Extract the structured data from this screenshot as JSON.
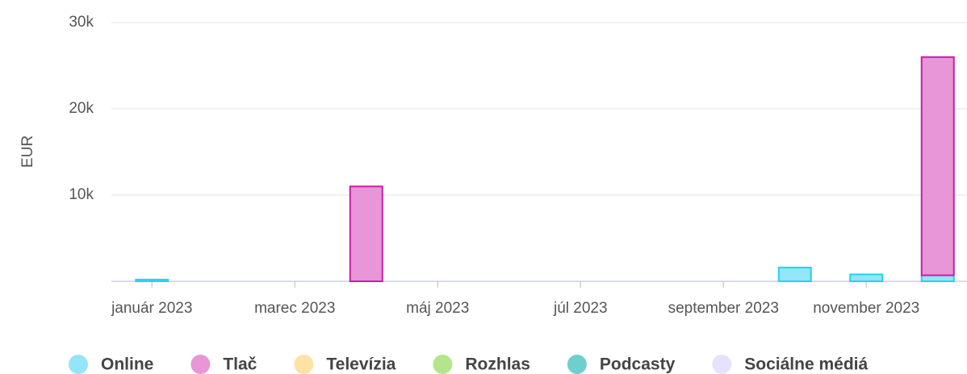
{
  "chart_data": {
    "type": "stacked-bar",
    "y_label": "EUR",
    "categories": [
      "január 2023",
      null,
      "marec 2023",
      null,
      "máj 2023",
      null,
      "júl 2023",
      null,
      "september 2023",
      null,
      "november 2023",
      null
    ],
    "series": [
      {
        "name": "Online",
        "color": "#93e5f7",
        "stroke": "#22d3ee",
        "values": [
          200,
          0,
          0,
          0,
          0,
          0,
          0,
          0,
          0,
          1600,
          800,
          700
        ]
      },
      {
        "name": "Tlač",
        "color": "#e896d8",
        "stroke": "#c81ea5",
        "values": [
          0,
          0,
          0,
          11000,
          0,
          0,
          0,
          0,
          0,
          0,
          0,
          25300
        ]
      },
      {
        "name": "Televízia",
        "color": "#fde2a6",
        "values": [
          0,
          0,
          0,
          0,
          0,
          0,
          0,
          0,
          0,
          0,
          0,
          0
        ]
      },
      {
        "name": "Rozhlas",
        "color": "#b3e68c",
        "values": [
          0,
          0,
          0,
          0,
          0,
          0,
          0,
          0,
          0,
          0,
          0,
          0
        ]
      },
      {
        "name": "Podcasty",
        "color": "#6ecfcf",
        "values": [
          0,
          0,
          0,
          0,
          0,
          0,
          0,
          0,
          0,
          0,
          0,
          0
        ]
      },
      {
        "name": "Sociálne médiá",
        "color": "#e5e3fb",
        "values": [
          0,
          0,
          0,
          0,
          0,
          0,
          0,
          0,
          0,
          0,
          0,
          0
        ]
      }
    ],
    "ylim": [
      0,
      30000
    ],
    "yticks": [
      {
        "value": 10000,
        "label": "10k"
      },
      {
        "value": 20000,
        "label": "20k"
      },
      {
        "value": 30000,
        "label": "30k"
      }
    ],
    "grid": true
  }
}
